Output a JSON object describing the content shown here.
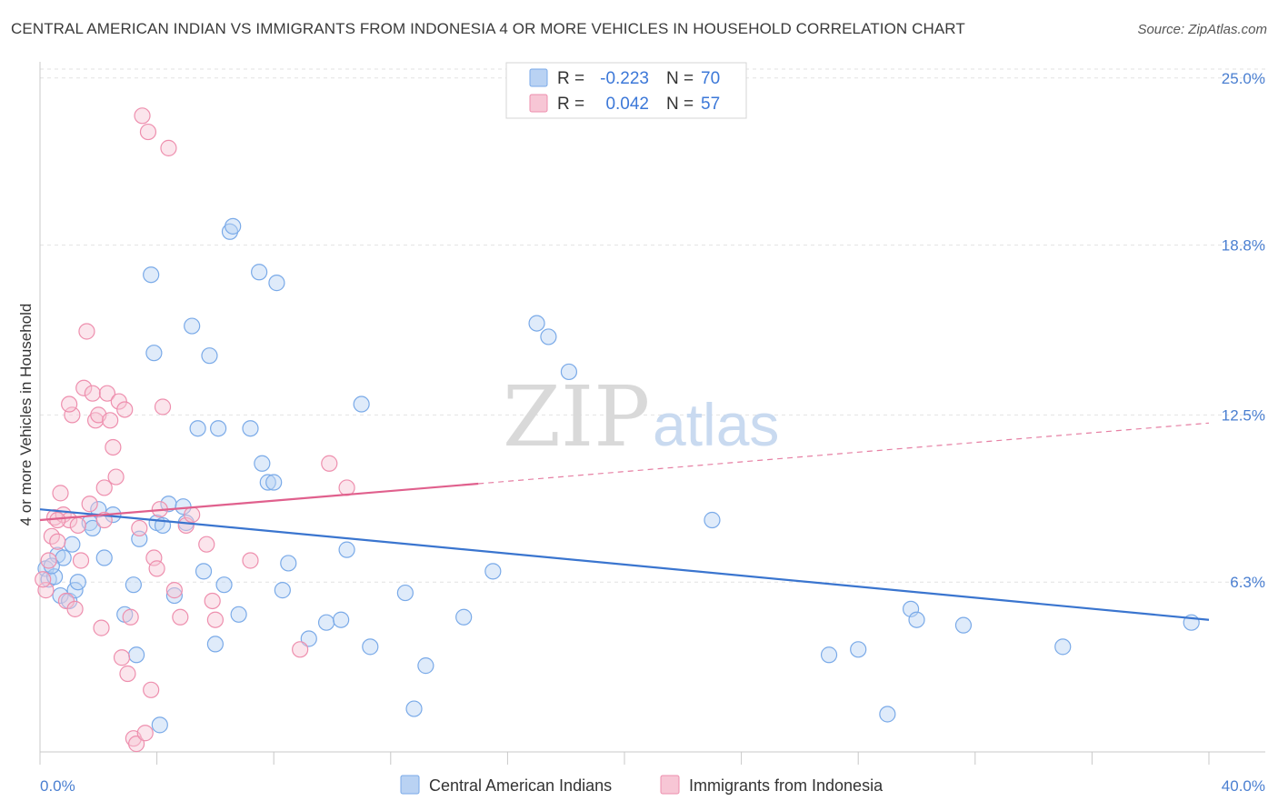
{
  "header": {
    "title": "CENTRAL AMERICAN INDIAN VS IMMIGRANTS FROM INDONESIA 4 OR MORE VEHICLES IN HOUSEHOLD CORRELATION CHART",
    "source": "Source: ZipAtlas.com"
  },
  "watermark": {
    "zip": "ZIP",
    "atlas": "atlas"
  },
  "legend": {
    "r_label": "R =",
    "n_label": "N =",
    "series": [
      {
        "name": "Central American Indians",
        "r": "-0.223",
        "n": "70",
        "color": "#7aaae8",
        "fill": "#b9d2f3"
      },
      {
        "name": "Immigrants from Indonesia",
        "r": "0.042",
        "n": "57",
        "color": "#ee8fae",
        "fill": "#f7c6d5"
      }
    ]
  },
  "chart_data": {
    "type": "scatter",
    "title": "CENTRAL AMERICAN INDIAN VS IMMIGRANTS FROM INDONESIA 4 OR MORE VEHICLES IN HOUSEHOLD CORRELATION CHART",
    "ylabel": "4 or more Vehicles in Household",
    "xlabel": "",
    "xlim": [
      0,
      40
    ],
    "ylim": [
      0,
      25.6
    ],
    "x_tick_labels": [
      "0.0%",
      "40.0%"
    ],
    "y_ticks": [
      6.3,
      12.5,
      18.8,
      25.0
    ],
    "y_tick_labels": [
      "6.3%",
      "12.5%",
      "18.8%",
      "25.0%"
    ],
    "grid": true,
    "legend_placement": "top-center",
    "series": [
      {
        "name": "Central American Indians",
        "color": "#3a75cf",
        "trend": {
          "x": [
            0,
            40
          ],
          "y": [
            9.0,
            4.9
          ],
          "dashed_from": null
        },
        "points": [
          [
            0.2,
            6.8
          ],
          [
            0.3,
            6.4
          ],
          [
            0.5,
            6.5
          ],
          [
            0.6,
            7.3
          ],
          [
            0.7,
            5.8
          ],
          [
            0.8,
            7.2
          ],
          [
            1.0,
            5.6
          ],
          [
            1.1,
            7.7
          ],
          [
            1.2,
            6.0
          ],
          [
            1.3,
            6.3
          ],
          [
            1.7,
            8.5
          ],
          [
            1.8,
            8.3
          ],
          [
            2.0,
            9.0
          ],
          [
            2.2,
            7.2
          ],
          [
            2.5,
            8.8
          ],
          [
            2.9,
            5.1
          ],
          [
            3.2,
            6.2
          ],
          [
            3.3,
            3.6
          ],
          [
            3.4,
            7.9
          ],
          [
            3.8,
            17.7
          ],
          [
            3.9,
            14.8
          ],
          [
            4.0,
            8.5
          ],
          [
            4.1,
            1.0
          ],
          [
            4.2,
            8.4
          ],
          [
            4.4,
            9.2
          ],
          [
            4.6,
            5.8
          ],
          [
            4.9,
            9.1
          ],
          [
            5.0,
            8.5
          ],
          [
            5.2,
            15.8
          ],
          [
            5.4,
            12.0
          ],
          [
            5.6,
            6.7
          ],
          [
            5.8,
            14.7
          ],
          [
            6.0,
            4.0
          ],
          [
            6.1,
            12.0
          ],
          [
            6.3,
            6.2
          ],
          [
            6.5,
            19.3
          ],
          [
            6.6,
            19.5
          ],
          [
            6.8,
            5.1
          ],
          [
            7.2,
            12.0
          ],
          [
            7.5,
            17.8
          ],
          [
            7.6,
            10.7
          ],
          [
            7.8,
            10.0
          ],
          [
            8.0,
            10.0
          ],
          [
            8.1,
            17.4
          ],
          [
            8.3,
            6.0
          ],
          [
            8.5,
            7.0
          ],
          [
            9.2,
            4.2
          ],
          [
            9.8,
            4.8
          ],
          [
            10.3,
            4.9
          ],
          [
            10.5,
            7.5
          ],
          [
            11.0,
            12.9
          ],
          [
            11.3,
            3.9
          ],
          [
            12.5,
            5.9
          ],
          [
            12.8,
            1.6
          ],
          [
            13.2,
            3.2
          ],
          [
            14.5,
            5.0
          ],
          [
            15.5,
            6.7
          ],
          [
            17.0,
            15.9
          ],
          [
            17.4,
            15.4
          ],
          [
            18.1,
            14.1
          ],
          [
            23.0,
            8.6
          ],
          [
            27.0,
            3.6
          ],
          [
            28.0,
            3.8
          ],
          [
            29.0,
            1.4
          ],
          [
            29.8,
            5.3
          ],
          [
            30.0,
            4.9
          ],
          [
            31.6,
            4.7
          ],
          [
            35.0,
            3.9
          ],
          [
            39.4,
            4.8
          ],
          [
            0.4,
            6.9
          ]
        ]
      },
      {
        "name": "Immigrants from Indonesia",
        "color": "#e0608d",
        "trend": {
          "x": [
            0,
            40
          ],
          "y": [
            8.6,
            12.2
          ],
          "dashed_from": 15.0
        },
        "points": [
          [
            0.2,
            6.0
          ],
          [
            0.3,
            7.1
          ],
          [
            0.4,
            8.0
          ],
          [
            0.5,
            8.7
          ],
          [
            0.6,
            7.8
          ],
          [
            0.7,
            9.6
          ],
          [
            0.8,
            8.8
          ],
          [
            0.9,
            5.6
          ],
          [
            1.0,
            8.6
          ],
          [
            1.1,
            12.5
          ],
          [
            1.2,
            5.3
          ],
          [
            1.3,
            8.4
          ],
          [
            1.4,
            7.1
          ],
          [
            1.5,
            13.5
          ],
          [
            1.6,
            15.6
          ],
          [
            1.7,
            9.2
          ],
          [
            1.8,
            13.3
          ],
          [
            1.9,
            12.3
          ],
          [
            2.0,
            12.5
          ],
          [
            2.1,
            4.6
          ],
          [
            2.2,
            8.6
          ],
          [
            2.3,
            13.3
          ],
          [
            2.4,
            12.3
          ],
          [
            2.5,
            11.3
          ],
          [
            2.6,
            10.2
          ],
          [
            2.7,
            13.0
          ],
          [
            2.8,
            3.5
          ],
          [
            2.9,
            12.7
          ],
          [
            3.0,
            2.9
          ],
          [
            3.1,
            5.0
          ],
          [
            3.2,
            0.5
          ],
          [
            3.3,
            0.3
          ],
          [
            3.4,
            8.3
          ],
          [
            3.5,
            23.6
          ],
          [
            3.6,
            0.7
          ],
          [
            3.7,
            23.0
          ],
          [
            3.8,
            2.3
          ],
          [
            3.9,
            7.2
          ],
          [
            4.0,
            6.8
          ],
          [
            4.1,
            9.0
          ],
          [
            4.2,
            12.8
          ],
          [
            4.4,
            22.4
          ],
          [
            4.6,
            6.0
          ],
          [
            4.8,
            5.0
          ],
          [
            5.0,
            8.4
          ],
          [
            5.2,
            8.8
          ],
          [
            5.7,
            7.7
          ],
          [
            5.9,
            5.6
          ],
          [
            6.0,
            4.9
          ],
          [
            7.2,
            7.1
          ],
          [
            8.9,
            3.8
          ],
          [
            9.9,
            10.7
          ],
          [
            10.5,
            9.8
          ],
          [
            0.1,
            6.4
          ],
          [
            0.6,
            8.6
          ],
          [
            1.0,
            12.9
          ],
          [
            2.2,
            9.8
          ]
        ]
      }
    ]
  }
}
